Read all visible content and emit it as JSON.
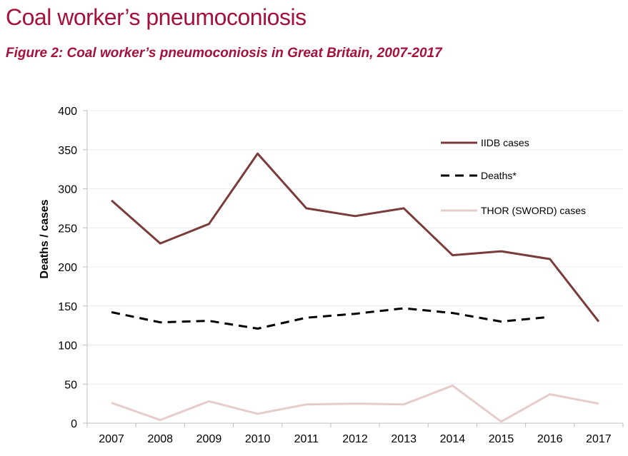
{
  "header": {
    "title": "Coal worker’s pneumoconiosis",
    "figure_caption": "Figure 2: Coal worker’s pneumoconiosis in Great Britain, 2007-2017"
  },
  "chart_data": {
    "type": "line",
    "title": "Figure 2: Coal worker’s pneumoconiosis in Great Britain, 2007-2017",
    "xlabel": "",
    "ylabel": "Deaths / cases",
    "categories": [
      "2007",
      "2008",
      "2009",
      "2010",
      "2011",
      "2012",
      "2013",
      "2014",
      "2015",
      "2016",
      "2017"
    ],
    "yticks": [
      "0",
      "50",
      "100",
      "150",
      "200",
      "250",
      "300",
      "350",
      "400"
    ],
    "ylim": [
      0,
      400
    ],
    "grid": true,
    "legend_position": "top-right",
    "series": [
      {
        "name": "IIDB cases",
        "color": "#7a3b3b",
        "style": "solid",
        "values": [
          285,
          230,
          255,
          345,
          275,
          265,
          275,
          215,
          220,
          210,
          130
        ]
      },
      {
        "name": "Deaths*",
        "color": "#000000",
        "style": "dashed",
        "values": [
          142,
          129,
          131,
          121,
          135,
          140,
          147,
          141,
          130,
          136,
          null
        ]
      },
      {
        "name": "THOR (SWORD) cases",
        "color": "#e6cccc",
        "style": "solid",
        "values": [
          26,
          4,
          28,
          12,
          24,
          25,
          24,
          48,
          2,
          37,
          25
        ]
      }
    ]
  }
}
